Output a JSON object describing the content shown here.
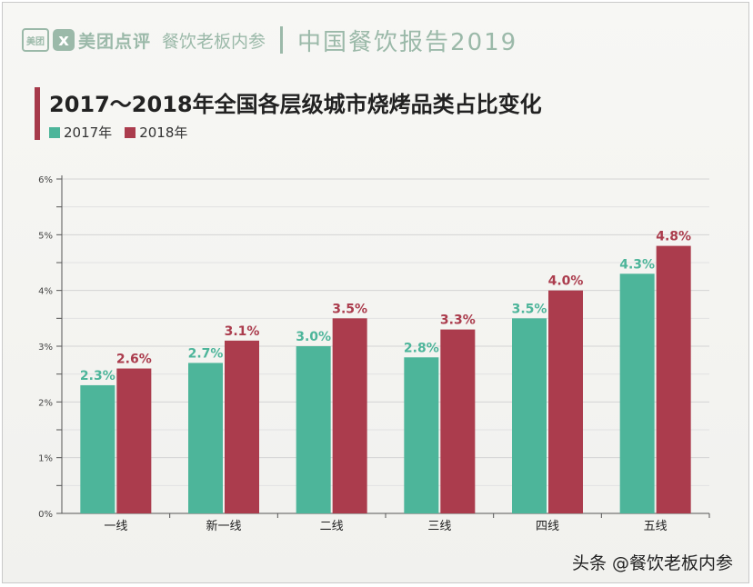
{
  "header": {
    "logo_text": "美团",
    "logo_mark": "ⅹ",
    "brand": "美团点评",
    "subbrand": "餐饮老板内参",
    "report_title": "中国餐饮报告2019"
  },
  "watermark": "头条 @餐饮老板内参",
  "colors": {
    "series_2017": "#4db59a",
    "series_2018": "#ab3c4d",
    "header": "#9bb9a9",
    "accent_bar": "#a63a4a"
  },
  "chart_data": {
    "type": "bar",
    "title": "2017～2018年全国各层级城市烧烤品类占比变化",
    "categories": [
      "一线",
      "新一线",
      "二线",
      "三线",
      "四线",
      "五线"
    ],
    "series": [
      {
        "name": "2017年",
        "values": [
          2.3,
          2.7,
          3.0,
          2.8,
          3.5,
          4.3
        ],
        "labels": [
          "2.3%",
          "2.7%",
          "3.0%",
          "2.8%",
          "3.5%",
          "4.3%"
        ]
      },
      {
        "name": "2018年",
        "values": [
          2.6,
          3.1,
          3.5,
          3.3,
          4.0,
          4.8
        ],
        "labels": [
          "2.6%",
          "3.1%",
          "3.5%",
          "3.3%",
          "4.0%",
          "4.8%"
        ]
      }
    ],
    "yticks": [
      "0%",
      "1%",
      "2%",
      "3%",
      "4%",
      "5%",
      "6%"
    ],
    "ylim": [
      0,
      6
    ],
    "grid": true,
    "legend_position": "top-left"
  }
}
